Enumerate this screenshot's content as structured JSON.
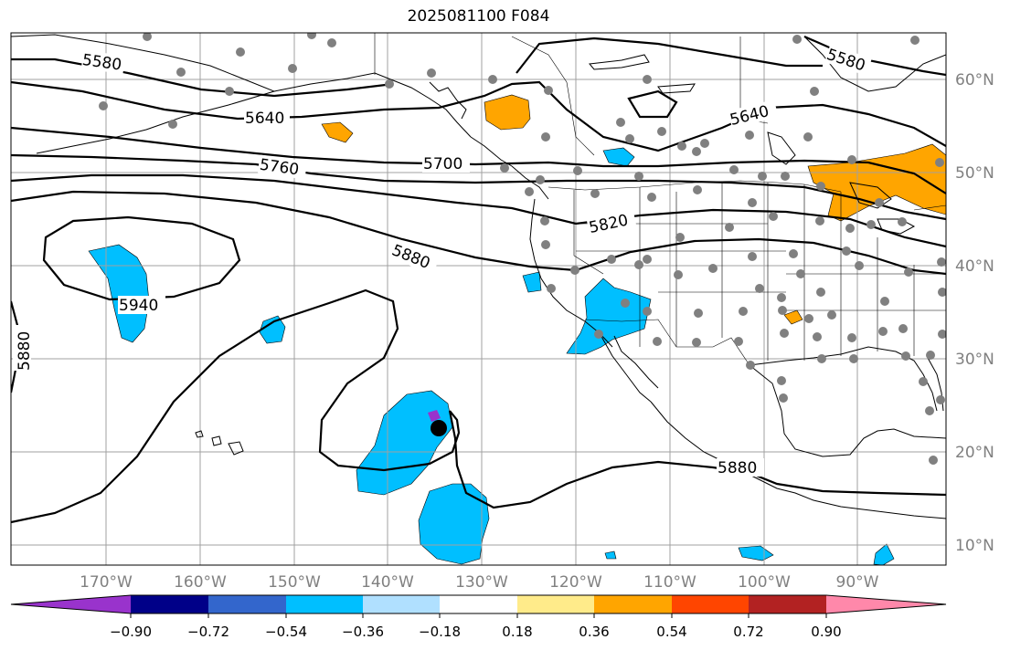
{
  "title": "2025081100 F084",
  "lon_ticks": [
    "170°W",
    "160°W",
    "150°W",
    "140°W",
    "130°W",
    "120°W",
    "110°W",
    "100°W",
    "90°W"
  ],
  "lat_ticks": [
    "60°N",
    "50°N",
    "40°N",
    "30°N",
    "20°N",
    "10°N"
  ],
  "contour_labels": [
    "5580",
    "5580",
    "5640",
    "5640",
    "5700",
    "5760",
    "5820",
    "5880",
    "5880",
    "5880",
    "5940"
  ],
  "colorbar": {
    "ticks": [
      "−0.90",
      "−0.72",
      "−0.54",
      "−0.36",
      "−0.18",
      "0.18",
      "0.36",
      "0.54",
      "0.72",
      "0.90"
    ],
    "colors": [
      "#9933cc",
      "#000088",
      "#3366cc",
      "#00bfff",
      "#b0e0ff",
      "#ffffff",
      "#ffeb8a",
      "#ffa500",
      "#ff4500",
      "#b22222",
      "#ff88aa"
    ]
  }
}
